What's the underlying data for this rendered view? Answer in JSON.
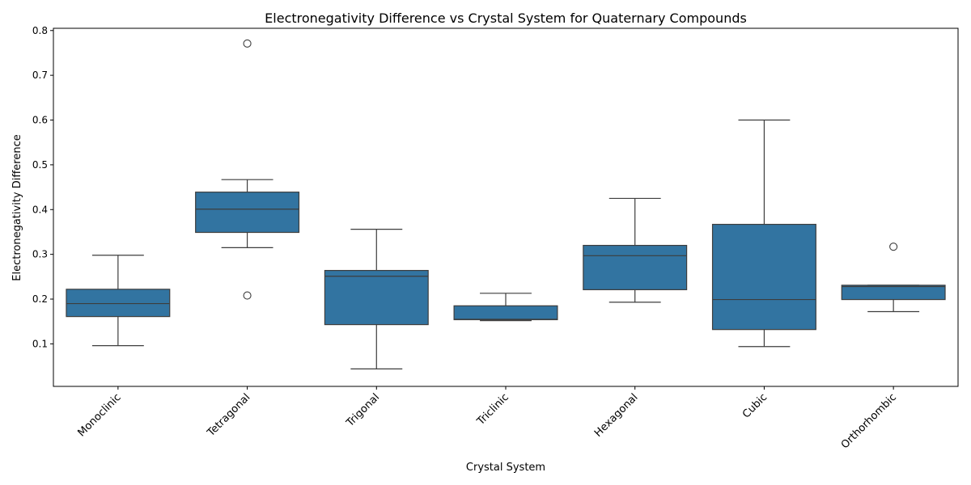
{
  "chart_data": {
    "type": "box",
    "title": "Electronegativity Difference vs Crystal System for Quaternary Compounds",
    "xlabel": "Crystal System",
    "ylabel": "Electronegativity Difference",
    "ylim": [
      0.005,
      0.805
    ],
    "yticks": [
      "0.1",
      "0.2",
      "0.3",
      "0.4",
      "0.5",
      "0.6",
      "0.7",
      "0.8"
    ],
    "grid": false,
    "box_color": "#3274a1",
    "line_color": "#3d3d3d",
    "categories": [
      "Monoclinic",
      "Tetragonal",
      "Trigonal",
      "Triclinic",
      "Hexagonal",
      "Cubic",
      "Orthorhombic"
    ],
    "boxes": [
      {
        "whisker_low": 0.096,
        "q1": 0.161,
        "median": 0.19,
        "q3": 0.222,
        "whisker_high": 0.298,
        "outliers": []
      },
      {
        "whisker_low": 0.315,
        "q1": 0.349,
        "median": 0.401,
        "q3": 0.439,
        "whisker_high": 0.467,
        "outliers": [
          0.208,
          0.771
        ]
      },
      {
        "whisker_low": 0.044,
        "q1": 0.143,
        "median": 0.251,
        "q3": 0.264,
        "whisker_high": 0.356,
        "outliers": []
      },
      {
        "whisker_low": 0.152,
        "q1": 0.154,
        "median": 0.155,
        "q3": 0.185,
        "whisker_high": 0.213,
        "outliers": []
      },
      {
        "whisker_low": 0.193,
        "q1": 0.221,
        "median": 0.297,
        "q3": 0.32,
        "whisker_high": 0.425,
        "outliers": []
      },
      {
        "whisker_low": 0.094,
        "q1": 0.132,
        "median": 0.199,
        "q3": 0.367,
        "whisker_high": 0.6,
        "outliers": []
      },
      {
        "whisker_low": 0.172,
        "q1": 0.199,
        "median": 0.228,
        "q3": 0.231,
        "whisker_high": 0.231,
        "outliers": [
          0.317
        ]
      }
    ]
  }
}
